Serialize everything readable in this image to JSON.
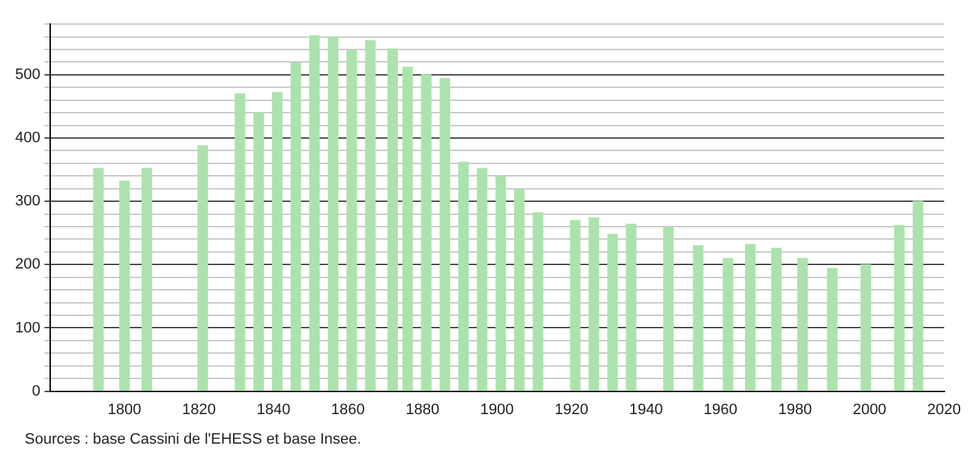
{
  "chart_data": {
    "type": "bar",
    "x": [
      1793,
      1800,
      1806,
      1821,
      1831,
      1836,
      1841,
      1846,
      1851,
      1856,
      1861,
      1866,
      1872,
      1876,
      1881,
      1886,
      1891,
      1896,
      1901,
      1906,
      1911,
      1921,
      1926,
      1931,
      1936,
      1946,
      1954,
      1962,
      1968,
      1975,
      1982,
      1990,
      1999,
      2008,
      2013
    ],
    "values": [
      352,
      332,
      352,
      388,
      470,
      440,
      472,
      519,
      562,
      559,
      539,
      554,
      541,
      512,
      500,
      494,
      362,
      352,
      339,
      319,
      282,
      270,
      274,
      248,
      264,
      259,
      230,
      210,
      232,
      226,
      210,
      194,
      200,
      262,
      300
    ],
    "color": "#ace3ac",
    "xlim": [
      1780,
      2020
    ],
    "xticks": [
      1800,
      1820,
      1840,
      1860,
      1880,
      1900,
      1920,
      1940,
      1960,
      1980,
      2000,
      2020
    ],
    "ylim": [
      0,
      580
    ],
    "yticks": [
      0,
      {
        "value": 20,
        "label": null
      },
      {
        "value": 40,
        "label": null
      },
      {
        "value": 60,
        "label": null
      },
      {
        "value": 80,
        "label": null
      },
      100,
      {
        "value": 120,
        "label": null
      },
      {
        "value": 140,
        "label": null
      },
      {
        "value": 160,
        "label": null
      },
      {
        "value": 180,
        "label": null
      },
      200,
      {
        "value": 220,
        "label": null
      },
      {
        "value": 240,
        "label": null
      },
      {
        "value": 260,
        "label": null
      },
      {
        "value": 280,
        "label": null
      },
      300,
      {
        "value": 320,
        "label": null
      },
      {
        "value": 340,
        "label": null
      },
      {
        "value": 360,
        "label": null
      },
      {
        "value": 380,
        "label": null
      },
      400,
      {
        "value": 420,
        "label": null
      },
      {
        "value": 440,
        "label": null
      },
      {
        "value": 460,
        "label": null
      },
      {
        "value": 480,
        "label": null
      },
      500,
      {
        "value": 520,
        "label": null
      },
      {
        "value": 540,
        "label": null
      },
      {
        "value": 560,
        "label": null
      },
      {
        "value": 580,
        "label": null
      }
    ],
    "grid": "y",
    "annotations": [
      "Sources : base Cassini de l'EHESS et base Insee."
    ]
  }
}
